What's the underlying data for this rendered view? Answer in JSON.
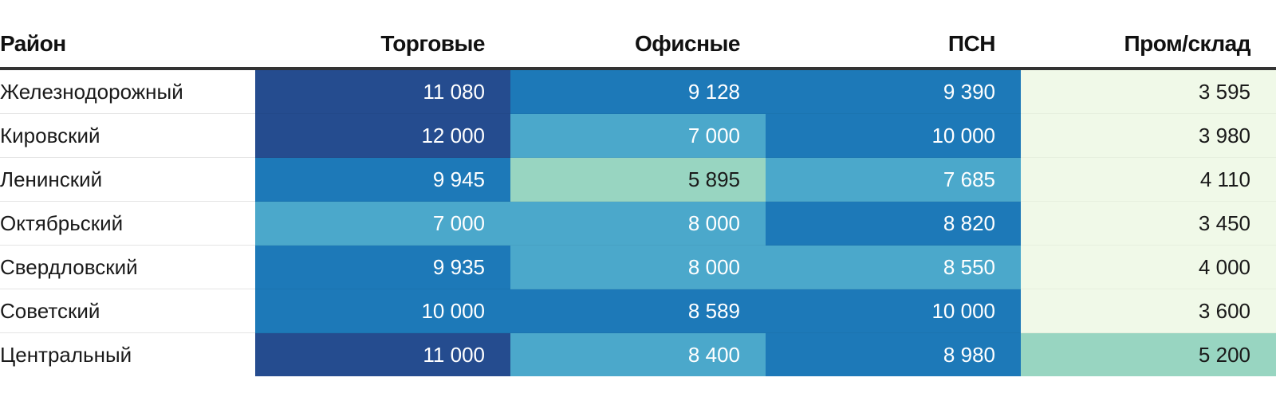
{
  "chart_data": {
    "type": "table",
    "title": "",
    "columns": [
      "Район",
      "Торговые",
      "Офисные",
      "ПСН",
      "Пром/склад"
    ],
    "rows": [
      {
        "district": "Железнодорожный",
        "values": [
          "11 080",
          "9 128",
          "9 390",
          "3 595"
        ],
        "levels": [
          4,
          3,
          3,
          0
        ]
      },
      {
        "district": "Кировский",
        "values": [
          "12 000",
          "7 000",
          "10 000",
          "3 980"
        ],
        "levels": [
          4,
          2,
          3,
          0
        ]
      },
      {
        "district": "Ленинский",
        "values": [
          "9 945",
          "5 895",
          "7 685",
          "4 110"
        ],
        "levels": [
          3,
          1,
          2,
          0
        ]
      },
      {
        "district": "Октябрьский",
        "values": [
          "7 000",
          "8 000",
          "8 820",
          "3 450"
        ],
        "levels": [
          2,
          2,
          3,
          0
        ]
      },
      {
        "district": "Свердловский",
        "values": [
          "9 935",
          "8 000",
          "8 550",
          "4 000"
        ],
        "levels": [
          3,
          2,
          2,
          0
        ]
      },
      {
        "district": "Советский",
        "values": [
          "10 000",
          "8 589",
          "10 000",
          "3 600"
        ],
        "levels": [
          3,
          3,
          3,
          0
        ]
      },
      {
        "district": "Центральный",
        "values": [
          "11 000",
          "8 400",
          "8 980",
          "5 200"
        ],
        "levels": [
          4,
          2,
          3,
          1
        ]
      }
    ],
    "color_scale": [
      "#f0f9e8",
      "#98d5c1",
      "#4ba8cb",
      "#1d79b8",
      "#254c8f"
    ],
    "text_colors": [
      "#1a1a1a",
      "#1a1a1a",
      "#ffffff",
      "#ffffff",
      "#ffffff"
    ]
  }
}
